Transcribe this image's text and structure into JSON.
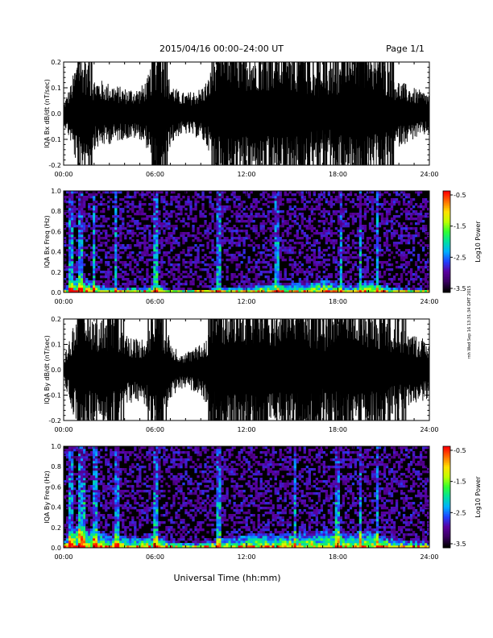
{
  "header": {
    "title": "2015/04/16  00:00–24:00 UT",
    "page": "Page 1/1"
  },
  "xlabel": "Universal Time (hh:mm)",
  "stamp": "rnh Wed Sep 16 13:31:34 GMT 2015",
  "colors": {
    "trace": "#000000",
    "background": "#ffffff",
    "colorbar": [
      "#000000",
      "#3a0060",
      "#5a00a0",
      "#2040ff",
      "#00b0ff",
      "#00e0a0",
      "#30ff30",
      "#c0ff00",
      "#ffe000",
      "#ff7000",
      "#ff0000"
    ]
  },
  "chart_data": [
    {
      "type": "line",
      "ylabel": "IQA Bx dB/dt (nT/sec)",
      "xlim": [
        "00:00",
        "24:00"
      ],
      "ylim": [
        -0.2,
        0.2
      ],
      "x_ticks": [
        "00:00",
        "06:00",
        "12:00",
        "18:00",
        "24:00"
      ],
      "y_ticks": [
        "0.2",
        "0.1",
        "0.0",
        "-0.1",
        "-0.2"
      ],
      "envelope": {
        "x_hours": [
          0,
          0.5,
          1,
          1.5,
          2,
          3,
          4,
          5,
          5.5,
          6,
          6.5,
          7,
          7.5,
          8,
          9,
          9.5,
          10,
          11,
          12,
          13,
          14,
          15,
          16,
          17,
          18,
          19,
          20,
          21,
          22,
          23,
          24
        ],
        "amplitude": [
          0.04,
          0.12,
          0.25,
          0.2,
          0.14,
          0.12,
          0.1,
          0.1,
          0.14,
          0.25,
          0.2,
          0.13,
          0.09,
          0.08,
          0.1,
          0.14,
          0.25,
          0.25,
          0.25,
          0.25,
          0.25,
          0.25,
          0.2,
          0.16,
          0.2,
          0.25,
          0.25,
          0.2,
          0.13,
          0.1,
          0.08
        ]
      }
    },
    {
      "type": "heatmap",
      "ylabel": "IQA Bx Freq (Hz)",
      "xlim": [
        "00:00",
        "24:00"
      ],
      "ylim": [
        0.0,
        1.0
      ],
      "x_ticks": [
        "00:00",
        "06:00",
        "12:00",
        "18:00",
        "24:00"
      ],
      "y_ticks": [
        "1.0",
        "0.8",
        "0.6",
        "0.4",
        "0.2",
        "0.0"
      ],
      "colorbar": {
        "label": "Log10 Power",
        "range": [
          -3.5,
          -0.5
        ],
        "ticks": [
          "-0.5",
          "-1.5",
          "-2.5",
          "-3.5"
        ]
      },
      "profile": {
        "x_hours": [
          0,
          1,
          2,
          3,
          4,
          5,
          6,
          7,
          8,
          9,
          10,
          11,
          12,
          13,
          14,
          15,
          16,
          17,
          18,
          19,
          20,
          21,
          22,
          23,
          24
        ],
        "low_freq_extent_hz": [
          0.05,
          0.18,
          0.1,
          0.07,
          0.06,
          0.06,
          0.1,
          0.04,
          0.03,
          0.03,
          0.05,
          0.06,
          0.08,
          0.1,
          0.1,
          0.1,
          0.12,
          0.15,
          0.1,
          0.08,
          0.14,
          0.08,
          0.05,
          0.04,
          0.04
        ]
      },
      "streaks_hours": [
        0.5,
        1.0,
        1.2,
        2.0,
        3.4,
        6.0,
        10.2,
        14.0,
        18.2,
        19.5,
        20.6
      ]
    },
    {
      "type": "line",
      "ylabel": "IQA By dB/dt (nT/sec)",
      "xlim": [
        "00:00",
        "24:00"
      ],
      "ylim": [
        -0.2,
        0.2
      ],
      "x_ticks": [
        "00:00",
        "06:00",
        "12:00",
        "18:00",
        "24:00"
      ],
      "y_ticks": [
        "0.2",
        "0.1",
        "0.0",
        "-0.1",
        "-0.2"
      ],
      "envelope": {
        "x_hours": [
          0,
          0.5,
          1,
          1.5,
          2,
          3,
          4,
          5,
          5.5,
          6,
          6.5,
          7,
          7.5,
          8,
          9,
          9.5,
          10,
          11,
          12,
          13,
          14,
          15,
          16,
          17,
          18,
          19,
          20,
          21,
          22,
          23,
          24
        ],
        "amplitude": [
          0.05,
          0.15,
          0.25,
          0.25,
          0.2,
          0.2,
          0.15,
          0.12,
          0.15,
          0.25,
          0.2,
          0.12,
          0.08,
          0.07,
          0.1,
          0.15,
          0.25,
          0.25,
          0.25,
          0.25,
          0.25,
          0.25,
          0.25,
          0.2,
          0.22,
          0.25,
          0.25,
          0.22,
          0.16,
          0.14,
          0.12
        ]
      }
    },
    {
      "type": "heatmap",
      "ylabel": "IQA By Freq (Hz)",
      "xlim": [
        "00:00",
        "24:00"
      ],
      "ylim": [
        0.0,
        1.0
      ],
      "x_ticks": [
        "00:00",
        "06:00",
        "12:00",
        "18:00",
        "24:00"
      ],
      "y_ticks": [
        "1.0",
        "0.8",
        "0.6",
        "0.4",
        "0.2",
        "0.0"
      ],
      "colorbar": {
        "label": "Log10 Power",
        "range": [
          -3.5,
          -0.5
        ],
        "ticks": [
          "-0.5",
          "-1.5",
          "-2.5",
          "-3.5"
        ]
      },
      "profile": {
        "x_hours": [
          0,
          1,
          2,
          3,
          4,
          5,
          6,
          7,
          8,
          9,
          10,
          11,
          12,
          13,
          14,
          15,
          16,
          17,
          18,
          19,
          20,
          21,
          22,
          23,
          24
        ],
        "low_freq_extent_hz": [
          0.1,
          0.3,
          0.2,
          0.15,
          0.12,
          0.12,
          0.18,
          0.08,
          0.06,
          0.07,
          0.1,
          0.12,
          0.14,
          0.16,
          0.14,
          0.16,
          0.18,
          0.2,
          0.2,
          0.15,
          0.22,
          0.14,
          0.1,
          0.08,
          0.08
        ]
      },
      "streaks_hours": [
        0.5,
        1.0,
        1.3,
        2.1,
        3.5,
        6.0,
        10.2,
        15.2,
        18.0,
        19.5,
        20.6
      ]
    }
  ]
}
